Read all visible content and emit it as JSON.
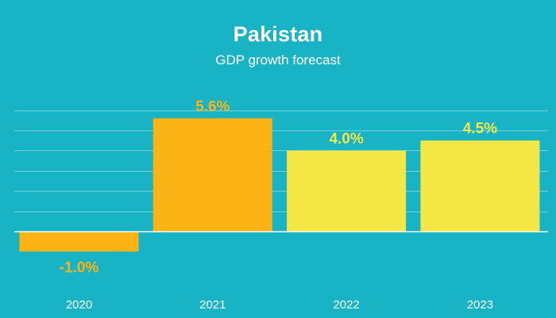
{
  "chart_data": {
    "type": "bar",
    "title": "Pakistan",
    "subtitle": "GDP growth forecast",
    "categories": [
      "2020",
      "2021",
      "2022",
      "2023"
    ],
    "values": [
      -1.0,
      5.6,
      4.0,
      4.5
    ],
    "value_labels": [
      "-1.0%",
      "5.6%",
      "4.0%",
      "4.5%"
    ],
    "bar_colors": [
      "#fcb316",
      "#fcb316",
      "#f4e645",
      "#f4e645"
    ],
    "ylim": [
      -1.9,
      6.0
    ],
    "grid_step": 1.0,
    "grid": true,
    "xlabel": "",
    "ylabel": ""
  },
  "colors": {
    "background": "#19b3c6",
    "gridline": "#6fd0dc",
    "zero_line": "#ffffff",
    "text": "#ffffff"
  }
}
